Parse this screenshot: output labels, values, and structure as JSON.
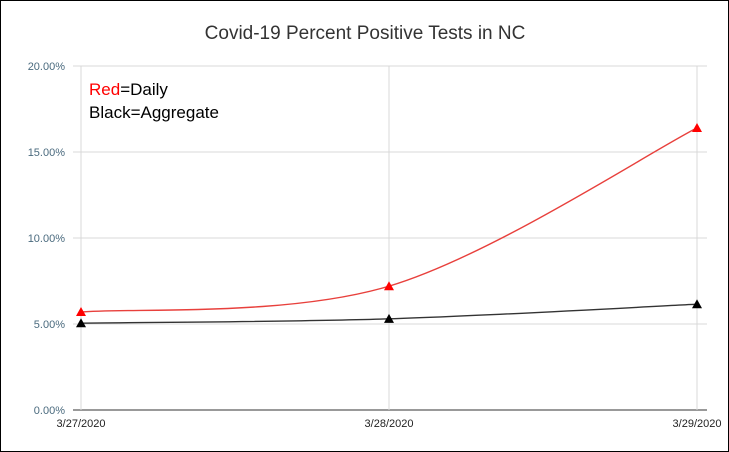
{
  "chart_data": {
    "type": "line",
    "title": "Covid-19 Percent Positive Tests in NC",
    "xlabel": "",
    "ylabel": "",
    "categories": [
      "3/27/2020",
      "3/28/2020",
      "3/29/2020"
    ],
    "y_ticks": [
      "0.00%",
      "5.00%",
      "10.00%",
      "15.00%",
      "20.00%"
    ],
    "ylim": [
      0,
      20
    ],
    "y_unit": "percent",
    "grid": true,
    "smooth": true,
    "marker": "triangle",
    "series": [
      {
        "color": "#e8403c",
        "marker_color": "#ff0000",
        "values": [
          5.7,
          7.2,
          16.4
        ]
      },
      {
        "color": "#333333",
        "marker_color": "#000000",
        "values": [
          5.05,
          5.3,
          6.15
        ]
      }
    ],
    "annotation": {
      "line1": {
        "color_word": "Red",
        "rest": "=Daily",
        "color": "#ff0000"
      },
      "line2": {
        "color_word": "Black",
        "rest": "=Aggregate",
        "color": "#000000"
      }
    },
    "legend": "none"
  }
}
